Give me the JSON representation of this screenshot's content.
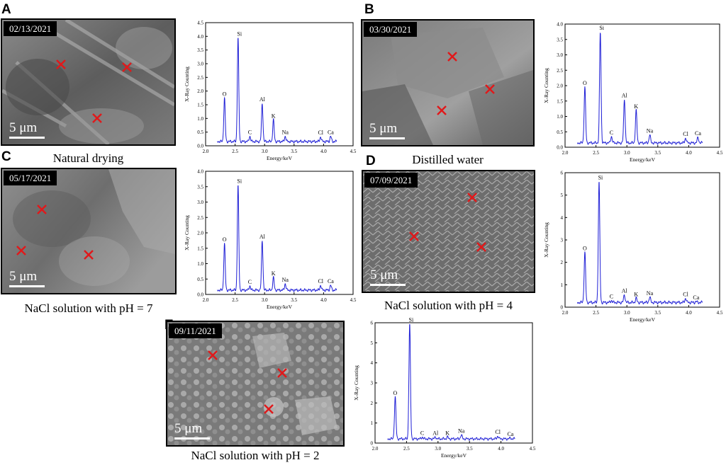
{
  "panels": [
    {
      "letter": "A",
      "date": "02/13/2021",
      "scale": "5 μm",
      "caption": "Natural drying"
    },
    {
      "letter": "B",
      "date": "03/30/2021",
      "scale": "5 μm",
      "caption": "Distilled water"
    },
    {
      "letter": "C",
      "date": "05/17/2021",
      "scale": "5 μm",
      "caption": "NaCl solution with pH = 7"
    },
    {
      "letter": "D",
      "date": "07/09/2021",
      "scale": "5 μm",
      "caption": "NaCl solution with pH = 4"
    },
    {
      "letter": "E",
      "date": "09/11/2021",
      "scale": "5 μm",
      "caption": "NaCl solution with pH = 2"
    }
  ],
  "colors": {
    "spectrum": "#1f1fd6",
    "marker": "#e0191b",
    "sem_bg": "#6e6e6e"
  },
  "chart_data": [
    {
      "type": "line",
      "panel": "A",
      "xlabel": "Energy/keV",
      "ylabel": "X-Ray Counting",
      "xlim": [
        2.0,
        4.5
      ],
      "ylim": [
        0,
        4.5
      ],
      "xticks": [
        "2.0",
        "2.5",
        "3.0",
        "3.5",
        "4.0",
        "4.5"
      ],
      "yticks": [
        "0.0",
        "0.5",
        "1.0",
        "1.5",
        "2.0",
        "2.5",
        "3.0",
        "3.5",
        "4.0",
        "4.5"
      ],
      "peaks": [
        {
          "label": "O",
          "x": 2.32,
          "y": 1.75
        },
        {
          "label": "Si",
          "x": 2.55,
          "y": 3.95
        },
        {
          "label": "C",
          "x": 2.75,
          "y": 0.35
        },
        {
          "label": "Al",
          "x": 2.96,
          "y": 1.55
        },
        {
          "label": "K",
          "x": 3.15,
          "y": 0.95
        },
        {
          "label": "Na",
          "x": 3.35,
          "y": 0.35
        },
        {
          "label": "Cl",
          "x": 3.95,
          "y": 0.33
        },
        {
          "label": "Ca",
          "x": 4.12,
          "y": 0.35
        }
      ]
    },
    {
      "type": "line",
      "panel": "B",
      "xlabel": "Energy/keV",
      "ylabel": "X-Ray Counting",
      "xlim": [
        2.0,
        4.5
      ],
      "ylim": [
        0,
        4.0
      ],
      "xticks": [
        "2.0",
        "2.5",
        "3.0",
        "3.5",
        "4.0",
        "4.5"
      ],
      "yticks": [
        "0.0",
        "0.5",
        "1.0",
        "1.5",
        "2.0",
        "2.5",
        "3.0",
        "3.5",
        "4.0"
      ],
      "peaks": [
        {
          "label": "O",
          "x": 2.32,
          "y": 1.95
        },
        {
          "label": "Si",
          "x": 2.57,
          "y": 3.75
        },
        {
          "label": "C",
          "x": 2.75,
          "y": 0.35
        },
        {
          "label": "Al",
          "x": 2.96,
          "y": 1.55
        },
        {
          "label": "K",
          "x": 3.15,
          "y": 1.2
        },
        {
          "label": "Na",
          "x": 3.37,
          "y": 0.4
        },
        {
          "label": "Cl",
          "x": 3.95,
          "y": 0.3
        },
        {
          "label": "Ca",
          "x": 4.15,
          "y": 0.32
        }
      ]
    },
    {
      "type": "line",
      "panel": "C",
      "xlabel": "Energy/keV",
      "ylabel": "X-Ray Counting",
      "xlim": [
        2.0,
        4.5
      ],
      "ylim": [
        0,
        4.0
      ],
      "xticks": [
        "2.0",
        "2.5",
        "3.0",
        "3.5",
        "4.0",
        "4.5"
      ],
      "yticks": [
        "0.0",
        "0.5",
        "1.0",
        "1.5",
        "2.0",
        "2.5",
        "3.0",
        "3.5",
        "4.0"
      ],
      "peaks": [
        {
          "label": "O",
          "x": 2.32,
          "y": 1.65
        },
        {
          "label": "Si",
          "x": 2.55,
          "y": 3.55
        },
        {
          "label": "C",
          "x": 2.75,
          "y": 0.28
        },
        {
          "label": "Al",
          "x": 2.96,
          "y": 1.75
        },
        {
          "label": "K",
          "x": 3.15,
          "y": 0.55
        },
        {
          "label": "Na",
          "x": 3.35,
          "y": 0.35
        },
        {
          "label": "Cl",
          "x": 3.95,
          "y": 0.3
        },
        {
          "label": "Ca",
          "x": 4.12,
          "y": 0.3
        }
      ]
    },
    {
      "type": "line",
      "panel": "D",
      "xlabel": "Energy/keV",
      "ylabel": "X-Ray Counting",
      "xlim": [
        2.0,
        4.5
      ],
      "ylim": [
        0,
        6
      ],
      "xticks": [
        "2.0",
        "2.5",
        "3.0",
        "3.5",
        "4.0",
        "4.5"
      ],
      "yticks": [
        "0",
        "1",
        "2",
        "3",
        "4",
        "5",
        "6"
      ],
      "peaks": [
        {
          "label": "O",
          "x": 2.32,
          "y": 2.45
        },
        {
          "label": "Si",
          "x": 2.55,
          "y": 5.6
        },
        {
          "label": "C",
          "x": 2.75,
          "y": 0.3
        },
        {
          "label": "Al",
          "x": 2.96,
          "y": 0.55
        },
        {
          "label": "K",
          "x": 3.15,
          "y": 0.4
        },
        {
          "label": "Na",
          "x": 3.37,
          "y": 0.45
        },
        {
          "label": "Cl",
          "x": 3.95,
          "y": 0.4
        },
        {
          "label": "Ca",
          "x": 4.12,
          "y": 0.25
        }
      ]
    },
    {
      "type": "line",
      "panel": "E",
      "xlabel": "Energy/keV",
      "ylabel": "X-Ray Counting",
      "xlim": [
        2.0,
        4.5
      ],
      "ylim": [
        0,
        6
      ],
      "xticks": [
        "2.0",
        "2.5",
        "3.0",
        "3.5",
        "4.0",
        "4.5"
      ],
      "yticks": [
        "0",
        "1",
        "2",
        "3",
        "4",
        "5",
        "6"
      ],
      "peaks": [
        {
          "label": "O",
          "x": 2.32,
          "y": 2.3
        },
        {
          "label": "Si",
          "x": 2.55,
          "y": 5.95
        },
        {
          "label": "C",
          "x": 2.75,
          "y": 0.3
        },
        {
          "label": "Al",
          "x": 2.96,
          "y": 0.3
        },
        {
          "label": "K",
          "x": 3.15,
          "y": 0.3
        },
        {
          "label": "Na",
          "x": 3.37,
          "y": 0.4
        },
        {
          "label": "Cl",
          "x": 3.95,
          "y": 0.35
        },
        {
          "label": "Ca",
          "x": 4.15,
          "y": 0.25
        }
      ]
    }
  ]
}
